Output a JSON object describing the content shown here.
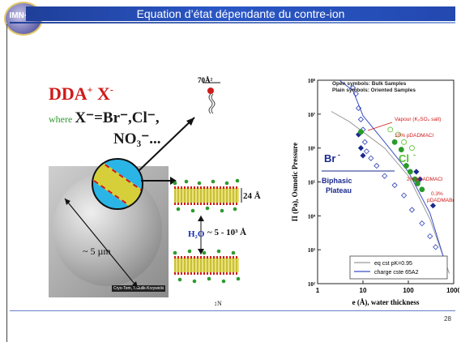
{
  "slide": {
    "title": "Equation d’état dépendante du contre-ion",
    "page_number": "28",
    "logo_text": "IMN·FR"
  },
  "left": {
    "formula_main": "DDA",
    "formula_plus": "+",
    "formula_x": " X",
    "formula_minus": "-",
    "where": "where ",
    "anions": "X⁻=Br⁻,Cl⁻,",
    "no3": "NO₃⁻...",
    "area": "70Å²",
    "micro_size": "~ 5 µm",
    "credit": "Cryo-Tem, T.Gulik-Krzywicki",
    "layer_thickness": "24 Å",
    "h2o": "H₂O",
    "spacing": "~ 5 - 10³ Å",
    "n_label": "↕N"
  },
  "chart_data": {
    "type": "scatter",
    "title": "",
    "xlabel": "e (Å), water thickness",
    "ylabel": "Π (Pa), Osmotic Pressure",
    "xscale": "log",
    "yscale": "log",
    "xlim": [
      1,
      1000
    ],
    "ylim": [
      100,
      100000000
    ],
    "x_ticks": [
      "1",
      "10",
      "100",
      "1000"
    ],
    "y_ticks": [
      "10²",
      "10³",
      "10⁴",
      "10⁵",
      "10⁶",
      "10⁷",
      "10⁸"
    ],
    "notes": [
      "Open symbols: Bulk Samples",
      "Plain symbols: Oriented Samples"
    ],
    "annotations": [
      "Vapour (K₂SO₄ salt)",
      "10% pDADMACl",
      "2% pDADMACl",
      "0.3% pDADMABr",
      "Br",
      "Cl",
      "Biphasic",
      "Plateau"
    ],
    "legend": [
      "eq cst pK=0.95",
      "charge cste 65A2"
    ],
    "series": [
      {
        "name": "Br⁻ (open)",
        "color": "#2a3fb5",
        "filled": false,
        "points": [
          [
            6,
            60000000
          ],
          [
            7,
            40000000
          ],
          [
            8,
            15000000
          ],
          [
            9,
            7000000
          ],
          [
            10,
            3500000
          ],
          [
            11,
            1500000
          ],
          [
            12,
            800000
          ],
          [
            15,
            500000
          ],
          [
            20,
            300000
          ],
          [
            30,
            150000
          ],
          [
            50,
            80000
          ],
          [
            80,
            40000
          ],
          [
            120,
            15000
          ],
          [
            200,
            6000
          ],
          [
            300,
            2500
          ],
          [
            400,
            1200
          ],
          [
            600,
            500
          ]
        ]
      },
      {
        "name": "Br⁻ (plain)",
        "color": "#1a2a8e",
        "filled": true,
        "points": [
          [
            8,
            2500000
          ],
          [
            9,
            1000000
          ],
          [
            10,
            600000
          ],
          [
            150,
            200000
          ],
          [
            180,
            120000
          ],
          [
            350,
            20000
          ]
        ]
      },
      {
        "name": "Cl⁻ (open)",
        "color": "#55c030",
        "filled": false,
        "points": [
          [
            40,
            3500000
          ],
          [
            60,
            2500000
          ],
          [
            80,
            1500000
          ],
          [
            120,
            1000000
          ]
        ]
      },
      {
        "name": "Cl⁻ (plain)",
        "color": "#2a9a2a",
        "filled": true,
        "points": [
          [
            9,
            3000000
          ],
          [
            50,
            1500000
          ],
          [
            70,
            900000
          ],
          [
            90,
            300000
          ],
          [
            110,
            200000
          ],
          [
            140,
            120000
          ],
          [
            160,
            90000
          ],
          [
            200,
            60000
          ]
        ]
      }
    ],
    "curves": [
      {
        "name": "eq cst pK=0.95",
        "color": "#9a9a9a",
        "points": [
          [
            2,
            12000000
          ],
          [
            5,
            6000000
          ],
          [
            10,
            3000000
          ],
          [
            30,
            1000000
          ],
          [
            100,
            150000
          ],
          [
            300,
            8000
          ],
          [
            800,
            200
          ]
        ]
      },
      {
        "name": "charge cste 65A2",
        "color": "#3a4fc5",
        "points": [
          [
            3,
            100000000
          ],
          [
            6,
            50000000
          ],
          [
            10,
            9000000
          ],
          [
            30,
            1500000
          ],
          [
            100,
            200000
          ],
          [
            300,
            12000
          ],
          [
            700,
            300
          ]
        ]
      }
    ]
  }
}
